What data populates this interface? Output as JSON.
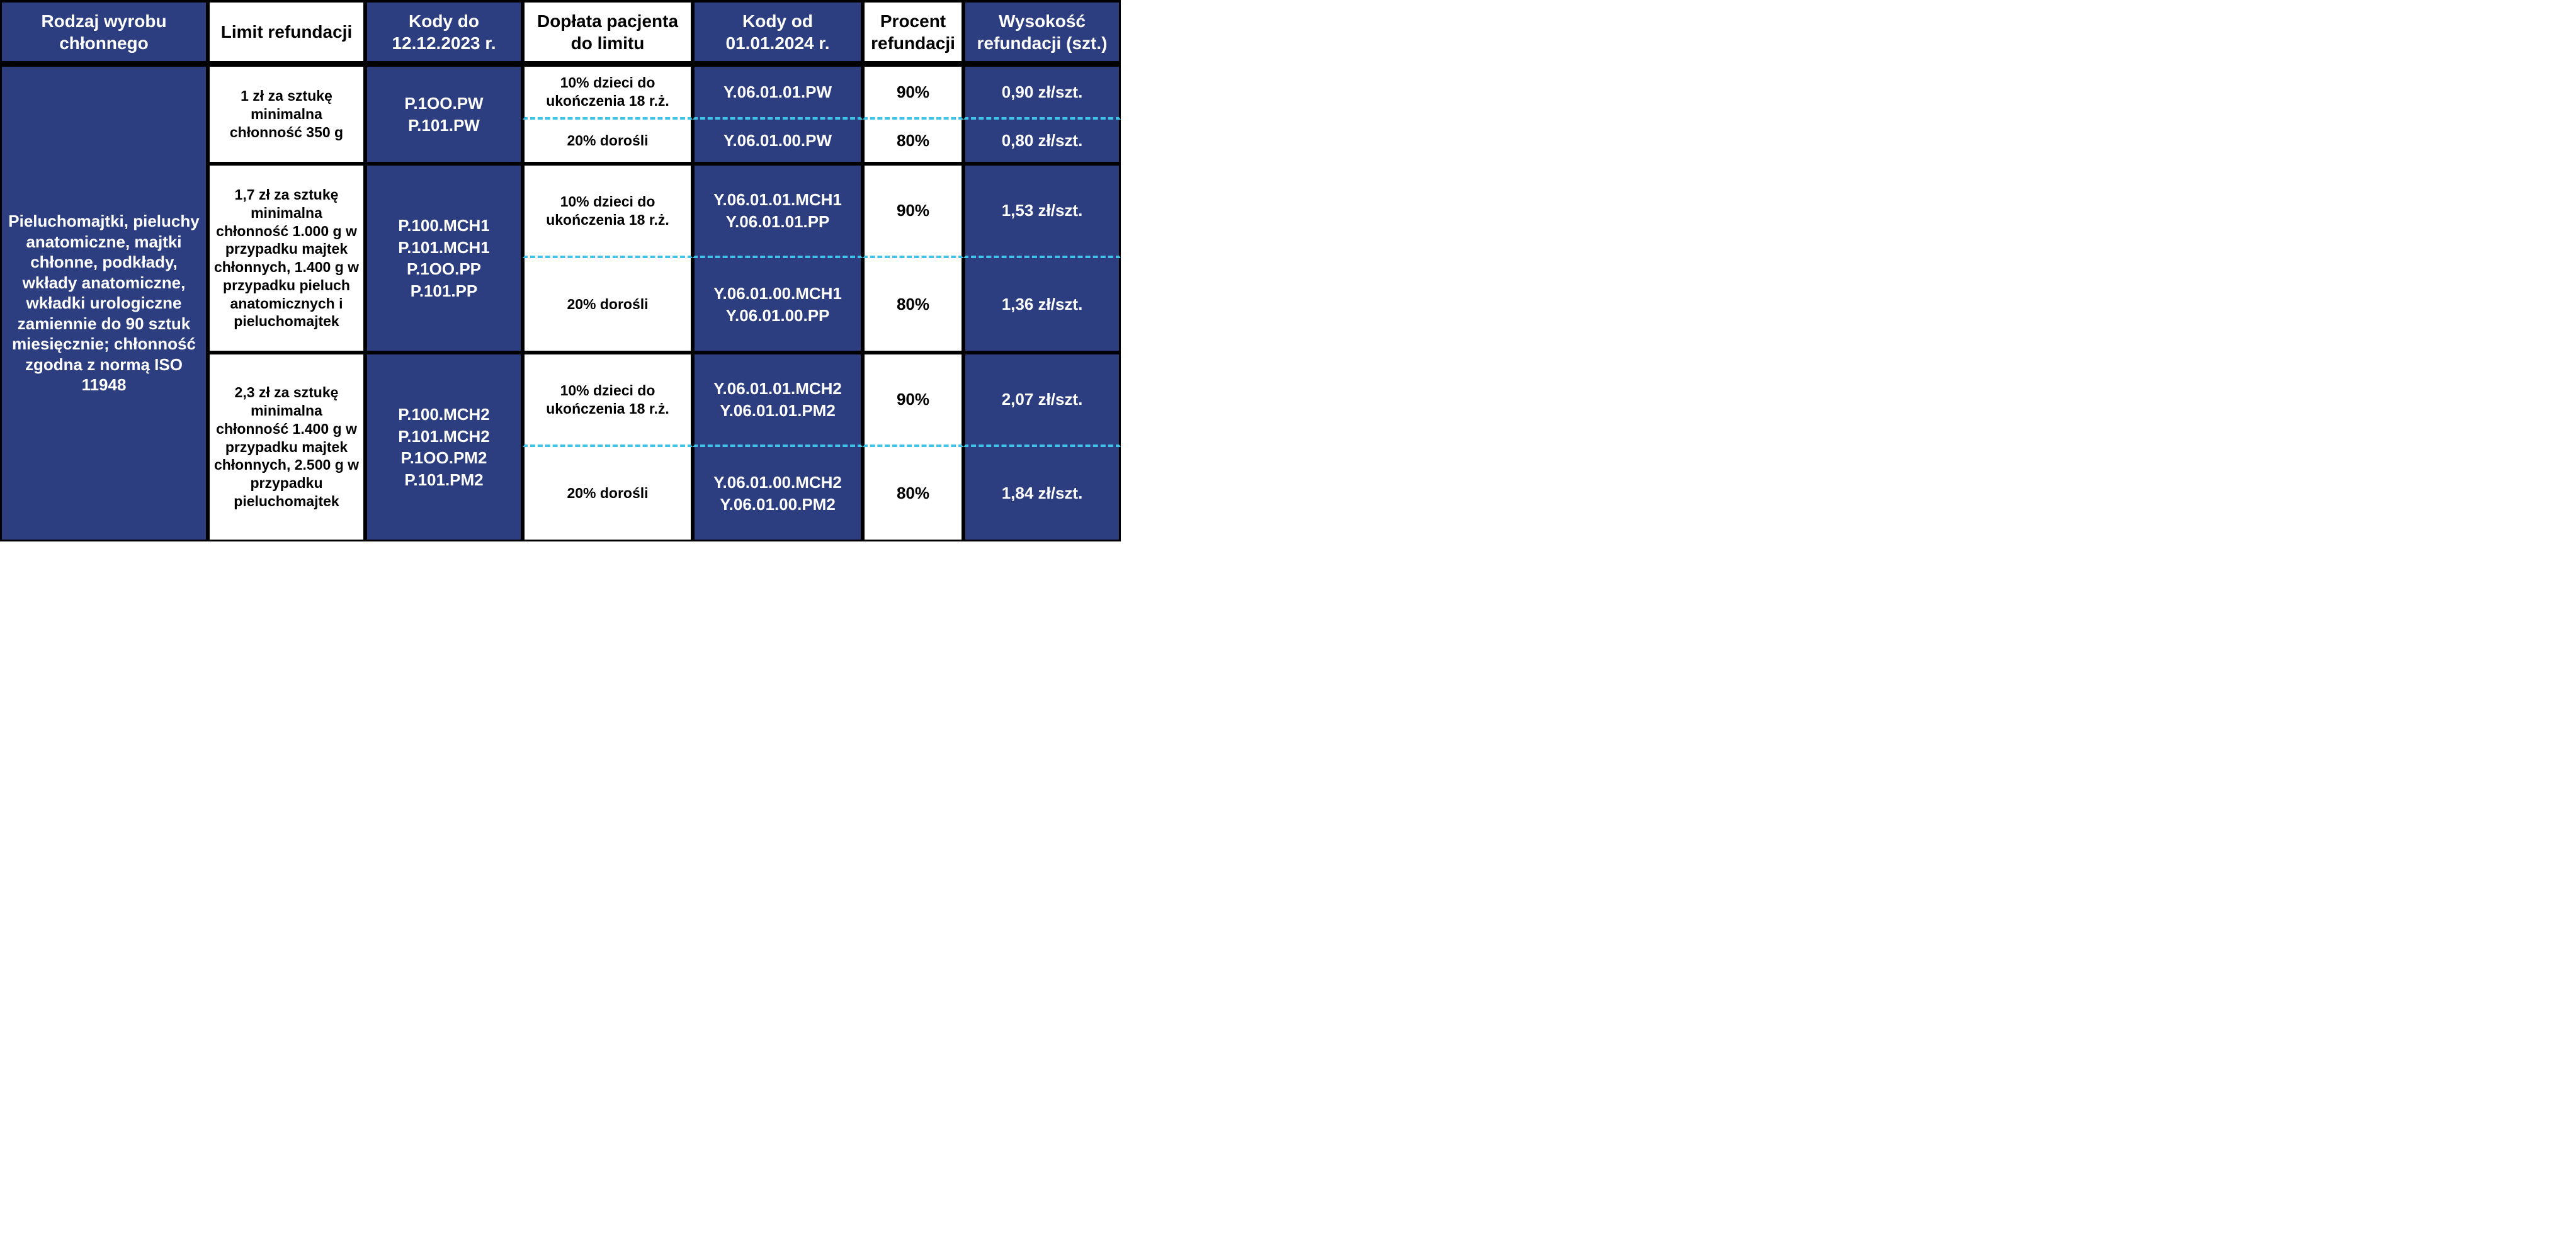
{
  "colors": {
    "dark_bg": "#2d3e80",
    "light_bg": "#ffffff",
    "text_light": "#ffffff",
    "text_dark": "#000000",
    "border": "#000000",
    "dash": "#3fc4e8"
  },
  "header": {
    "product_type": "Rodzaj wyrobu chłonnego",
    "limit": "Limit refundacji",
    "codes_old": "Kody do 12.12.2023 r.",
    "copay": "Dopłata pacjenta do limitu",
    "codes_new": "Kody od 01.01.2024 r.",
    "percent": "Procent refundacji",
    "amount": "Wysokość refundacji (szt.)"
  },
  "product": "Pieluchomajtki, pieluchy anatomiczne, majtki chłonne, podkłady, wkłady anatomiczne, wkładki urologiczne zamiennie do 90 sztuk miesięcznie; chłonność zgodna z normą ISO 11948",
  "groups": [
    {
      "limit": "1 zł za sztukę minimalna chłonność 350 g",
      "codes_old": [
        "P.1OO.PW",
        "P.101.PW"
      ],
      "rows": [
        {
          "copay": "10% dzieci do ukończenia 18 r.ż.",
          "codes_new": [
            "Y.06.01.01.PW"
          ],
          "percent": "90%",
          "amount": "0,90 zł/szt."
        },
        {
          "copay": "20% dorośli",
          "codes_new": [
            "Y.06.01.00.PW"
          ],
          "percent": "80%",
          "amount": "0,80 zł/szt."
        }
      ]
    },
    {
      "limit": "1,7 zł za sztukę minimalna chłonność 1.000 g w przypadku majtek chłonnych, 1.400 g w przypadku pieluch anatomicznych i pieluchomajtek",
      "codes_old": [
        "P.100.MCH1",
        "P.101.MCH1",
        "P.1OO.PP",
        "P.101.PP"
      ],
      "rows": [
        {
          "copay": "10% dzieci do ukończenia 18 r.ż.",
          "codes_new": [
            "Y.06.01.01.MCH1",
            "Y.06.01.01.PP"
          ],
          "percent": "90%",
          "amount": "1,53 zł/szt."
        },
        {
          "copay": "20% dorośli",
          "codes_new": [
            "Y.06.01.00.MCH1",
            "Y.06.01.00.PP"
          ],
          "percent": "80%",
          "amount": "1,36 zł/szt."
        }
      ]
    },
    {
      "limit": "2,3 zł za sztukę minimalna chłonność 1.400 g w przypadku majtek chłonnych, 2.500 g w przypadku pieluchomajtek",
      "codes_old": [
        "P.100.MCH2",
        "P.101.MCH2",
        "P.1OO.PM2",
        "P.101.PM2"
      ],
      "rows": [
        {
          "copay": "10% dzieci do ukończenia 18 r.ż.",
          "codes_new": [
            "Y.06.01.01.MCH2",
            "Y.06.01.01.PM2"
          ],
          "percent": "90%",
          "amount": "2,07 zł/szt."
        },
        {
          "copay": "20% dorośli",
          "codes_new": [
            "Y.06.01.00.MCH2",
            "Y.06.01.00.PM2"
          ],
          "percent": "80%",
          "amount": "1,84 zł/szt."
        }
      ]
    }
  ]
}
